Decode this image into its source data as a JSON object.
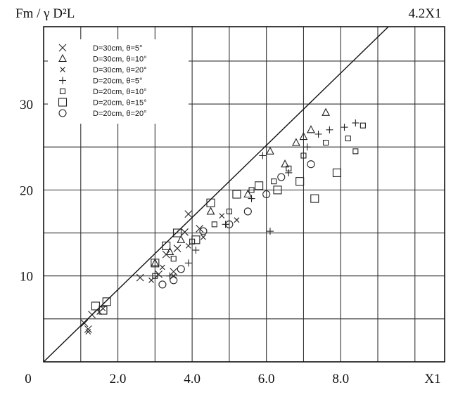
{
  "chart_data": {
    "type": "scatter",
    "ylabel": "Fm / γ D²L",
    "xlabel": "X1",
    "corner_label": "4.2X1",
    "origin_label": "0",
    "xlim": [
      0,
      10.8
    ],
    "ylim": [
      0,
      39
    ],
    "x_ticks": [
      {
        "v": 2,
        "label": "2.0"
      },
      {
        "v": 4,
        "label": "4.0"
      },
      {
        "v": 6,
        "label": "6.0"
      },
      {
        "v": 8,
        "label": "8.0"
      }
    ],
    "y_ticks": [
      {
        "v": 10,
        "label": "10"
      },
      {
        "v": 20,
        "label": "20"
      },
      {
        "v": 30,
        "label": "30"
      }
    ],
    "x_grid": [
      1,
      2,
      3,
      4,
      5,
      6,
      7,
      8,
      9,
      10
    ],
    "y_grid": [
      5,
      10,
      15,
      20,
      25,
      30,
      35
    ],
    "grid": true,
    "legend_position": "top-left",
    "reference_line": {
      "slope": 4.2,
      "intercept": 0
    },
    "series": [
      {
        "name": "D=30cm, θ=5°",
        "marker": "x-large",
        "points": [
          [
            1.1,
            4.5
          ],
          [
            1.2,
            3.8
          ],
          [
            1.3,
            5.5
          ],
          [
            2.6,
            9.8
          ],
          [
            3.1,
            10.2
          ],
          [
            3.3,
            12.5
          ],
          [
            3.6,
            13.2
          ],
          [
            3.8,
            15.1
          ],
          [
            3.5,
            10.5
          ],
          [
            4.2,
            15.5
          ],
          [
            3.9,
            17.2
          ]
        ]
      },
      {
        "name": "D=30cm, θ=10°",
        "marker": "triangle",
        "points": [
          [
            3.0,
            11.5
          ],
          [
            3.4,
            12.8
          ],
          [
            3.7,
            14.2
          ],
          [
            4.5,
            17.5
          ],
          [
            5.5,
            19.5
          ],
          [
            6.1,
            24.5
          ],
          [
            6.5,
            23.0
          ],
          [
            6.8,
            25.5
          ],
          [
            7.0,
            26.2
          ],
          [
            7.2,
            27.0
          ],
          [
            7.6,
            29.0
          ]
        ]
      },
      {
        "name": "D=30cm, θ=20°",
        "marker": "x-small",
        "points": [
          [
            1.2,
            3.5
          ],
          [
            1.5,
            5.8
          ],
          [
            1.6,
            6.2
          ],
          [
            2.9,
            9.5
          ],
          [
            3.2,
            11.0
          ],
          [
            3.5,
            10.0
          ],
          [
            3.9,
            13.5
          ],
          [
            4.3,
            14.5
          ],
          [
            4.8,
            17.0
          ],
          [
            5.2,
            16.5
          ]
        ]
      },
      {
        "name": "D=20cm, θ=5°",
        "marker": "plus",
        "points": [
          [
            3.4,
            10.0
          ],
          [
            3.9,
            11.5
          ],
          [
            4.1,
            13.0
          ],
          [
            4.9,
            16.0
          ],
          [
            5.6,
            19.0
          ],
          [
            5.9,
            24.0
          ],
          [
            6.1,
            15.2
          ],
          [
            6.6,
            22.0
          ],
          [
            7.1,
            25.0
          ],
          [
            7.7,
            27.0
          ],
          [
            8.1,
            27.3
          ],
          [
            8.4,
            27.8
          ],
          [
            7.4,
            26.5
          ]
        ]
      },
      {
        "name": "D=20cm, θ=10°",
        "marker": "square-small",
        "points": [
          [
            3.0,
            10.0
          ],
          [
            3.5,
            12.0
          ],
          [
            4.0,
            14.0
          ],
          [
            4.6,
            16.0
          ],
          [
            5.0,
            17.5
          ],
          [
            5.6,
            20.0
          ],
          [
            6.2,
            21.0
          ],
          [
            6.6,
            22.5
          ],
          [
            7.0,
            24.0
          ],
          [
            7.6,
            25.5
          ],
          [
            8.2,
            26.0
          ],
          [
            8.6,
            27.5
          ],
          [
            8.4,
            24.5
          ]
        ]
      },
      {
        "name": "D=20cm, θ=15°",
        "marker": "square-large",
        "points": [
          [
            1.4,
            6.5
          ],
          [
            1.6,
            6.0
          ],
          [
            1.7,
            7.0
          ],
          [
            3.0,
            11.5
          ],
          [
            3.3,
            13.5
          ],
          [
            3.6,
            15.0
          ],
          [
            4.1,
            14.2
          ],
          [
            4.5,
            18.5
          ],
          [
            5.2,
            19.5
          ],
          [
            5.8,
            20.5
          ],
          [
            6.3,
            20.0
          ],
          [
            6.9,
            21.0
          ],
          [
            7.3,
            19.0
          ],
          [
            7.9,
            22.0
          ]
        ]
      },
      {
        "name": "D=20cm, θ=20°",
        "marker": "circle",
        "points": [
          [
            3.2,
            9.0
          ],
          [
            3.5,
            9.5
          ],
          [
            3.7,
            10.8
          ],
          [
            4.3,
            15.2
          ],
          [
            5.0,
            16.0
          ],
          [
            5.5,
            17.5
          ],
          [
            6.0,
            19.5
          ],
          [
            6.4,
            21.5
          ],
          [
            7.2,
            23.0
          ]
        ]
      }
    ]
  }
}
